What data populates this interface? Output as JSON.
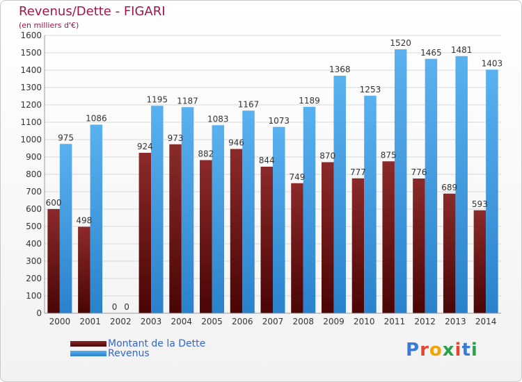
{
  "header": {
    "title": "Revenus/Dette - FIGARI",
    "subtitle": "(en milliers d'€)"
  },
  "legend": {
    "items": [
      {
        "label": "Montant de la Dette",
        "color": "#7a1a1a"
      },
      {
        "label": "Revenus",
        "color": "#3d9be3"
      }
    ]
  },
  "logo": {
    "text": "Proxiti"
  },
  "colors": {
    "debt_top": "#8b2a2a",
    "debt_bottom": "#4a0505",
    "revenue_top": "#5ab1ef",
    "revenue_bottom": "#2a82cc",
    "label_text": "#333333"
  },
  "chart_data": {
    "type": "bar",
    "title": "Revenus/Dette - FIGARI",
    "subtitle": "(en milliers d'€)",
    "categories": [
      "2000",
      "2001",
      "2002",
      "2003",
      "2004",
      "2005",
      "2006",
      "2007",
      "2008",
      "2009",
      "2010",
      "2011",
      "2012",
      "2013",
      "2014"
    ],
    "series": [
      {
        "name": "Montant de la Dette",
        "values": [
          600,
          498,
          0,
          924,
          973,
          882,
          946,
          844,
          749,
          870,
          777,
          875,
          776,
          689,
          593
        ]
      },
      {
        "name": "Revenus",
        "values": [
          975,
          1086,
          0,
          1195,
          1187,
          1083,
          1167,
          1073,
          1189,
          1368,
          1253,
          1520,
          1465,
          1481,
          1403
        ]
      }
    ],
    "ylim": [
      0,
      1600
    ],
    "yticks": [
      0,
      100,
      200,
      300,
      400,
      500,
      600,
      700,
      800,
      900,
      1000,
      1100,
      1200,
      1300,
      1400,
      1500,
      1600
    ],
    "grid": true,
    "legend_position": "bottom-left"
  }
}
